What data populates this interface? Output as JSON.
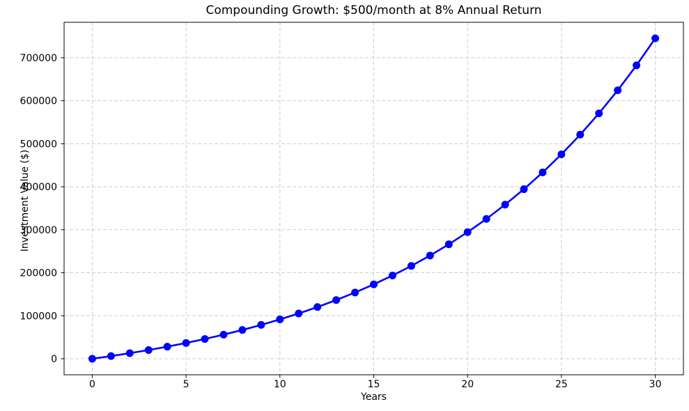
{
  "figure": {
    "background": "#ffffff"
  },
  "chart_data": {
    "type": "line",
    "title": "Compounding Growth: $500/month at 8% Annual Return",
    "xlabel": "Years",
    "ylabel": "Investment Value ($)",
    "series": [
      {
        "name": "Investment Value",
        "x": [
          0,
          1,
          2,
          3,
          4,
          5,
          6,
          7,
          8,
          9,
          10,
          11,
          12,
          13,
          14,
          15,
          16,
          17,
          18,
          19,
          20,
          21,
          22,
          23,
          24,
          25,
          26,
          27,
          28,
          29,
          30
        ],
        "y": [
          0,
          6225,
          12967,
          20268,
          28175,
          36738,
          46013,
          56057,
          66934,
          78715,
          91473,
          105290,
          120254,
          136460,
          154011,
          173019,
          193604,
          215898,
          240043,
          266191,
          294510,
          325179,
          358394,
          394366,
          433322,
          475512,
          521204,
          570689,
          624281,
          682321,
          745179
        ]
      }
    ],
    "x_ticks": [
      0,
      5,
      10,
      15,
      20,
      25,
      30
    ],
    "y_ticks": [
      0,
      100000,
      200000,
      300000,
      400000,
      500000,
      600000,
      700000
    ],
    "xlim": [
      -1.5,
      31.5
    ],
    "ylim": [
      -37259,
      782438
    ],
    "grid": true,
    "grid_style": "dashed",
    "grid_color": "#cccccc",
    "line_color": "#0000ff",
    "marker": "circle",
    "marker_color": "#0000ff",
    "frame_color": "#000000",
    "legend": "none"
  }
}
